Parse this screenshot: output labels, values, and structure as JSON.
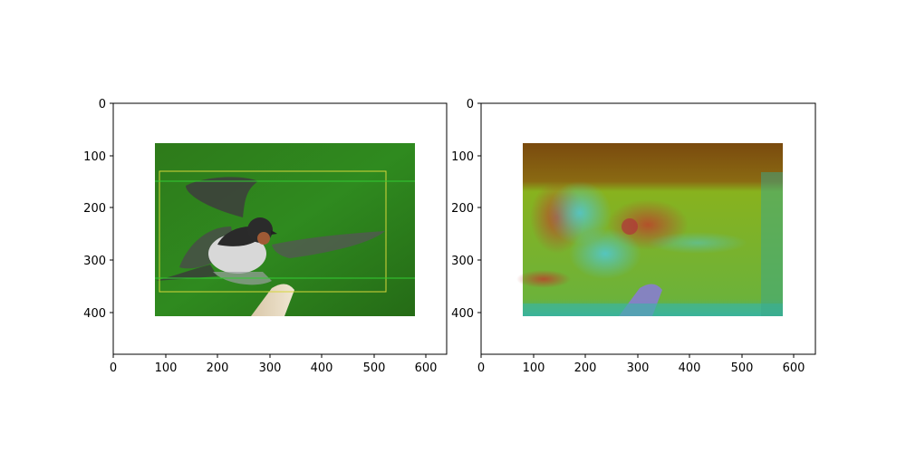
{
  "panels": [
    {
      "id": "left",
      "x_ticks": [
        "0",
        "100",
        "200",
        "300",
        "400",
        "500",
        "600"
      ],
      "y_ticks": [
        "0",
        "100",
        "200",
        "300",
        "400"
      ]
    },
    {
      "id": "right",
      "x_ticks": [
        "0",
        "100",
        "200",
        "300",
        "400",
        "500",
        "600"
      ],
      "y_ticks": [
        "0",
        "100",
        "200",
        "300",
        "400"
      ]
    }
  ],
  "colors": {
    "green_background": "#2f7d1c",
    "box_yellow": "#d6d63a",
    "line_green": "#33cc33",
    "heat_orange": "#8a5a12",
    "heat_green": "#7fb51f",
    "heat_cyan": "#3fb0a0"
  }
}
